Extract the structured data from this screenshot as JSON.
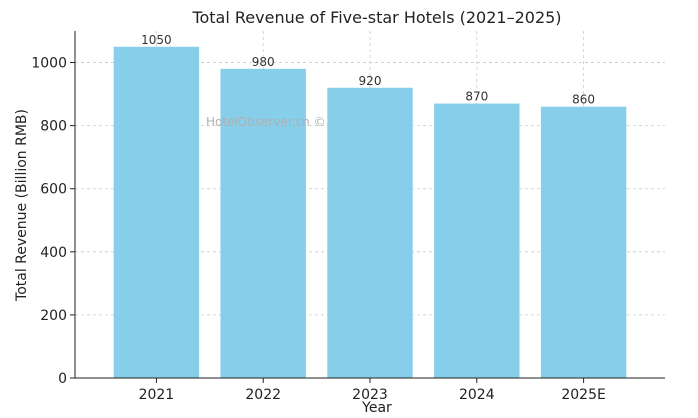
{
  "chart_data": {
    "type": "bar",
    "title": "Total Revenue of Five-star Hotels (2021–2025)",
    "xlabel": "Year",
    "ylabel": "Total Revenue (Billion RMB)",
    "categories": [
      "2021",
      "2022",
      "2023",
      "2024",
      "2025E"
    ],
    "values": [
      1050,
      980,
      920,
      870,
      860
    ],
    "value_labels": [
      "1050",
      "980",
      "920",
      "870",
      "860"
    ],
    "ylim": [
      0,
      1100
    ],
    "yticks": [
      0,
      200,
      400,
      600,
      800,
      1000
    ],
    "ytick_labels": [
      "0",
      "200",
      "400",
      "600",
      "800",
      "1000"
    ],
    "grid": true,
    "bar_color": "#87CEEB"
  },
  "watermark": "HotelObserver.cn ©"
}
